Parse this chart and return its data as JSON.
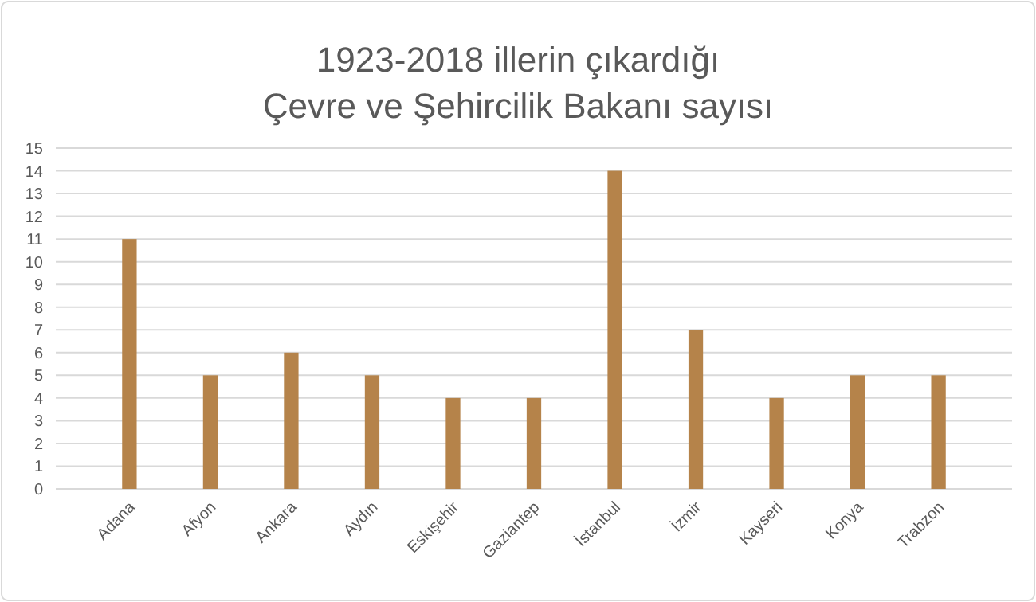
{
  "chart_data": {
    "type": "bar",
    "title": "1923-2018 illerin çıkardığı\nÇevre ve Şehircilik Bakanı sayısı",
    "categories": [
      "Adana",
      "Afyon",
      "Ankara",
      "Aydın",
      "Eskişehir",
      "Gaziantep",
      "İstanbul",
      "İzmir",
      "Kayseri",
      "Konya",
      "Trabzon"
    ],
    "values": [
      11,
      5,
      6,
      5,
      4,
      4,
      14,
      7,
      4,
      5,
      5
    ],
    "color": "#b5834a",
    "ylim": [
      0,
      15
    ],
    "yticks": [
      0,
      1,
      2,
      3,
      4,
      5,
      6,
      7,
      8,
      9,
      10,
      11,
      12,
      13,
      14,
      15
    ],
    "grid": "y"
  }
}
